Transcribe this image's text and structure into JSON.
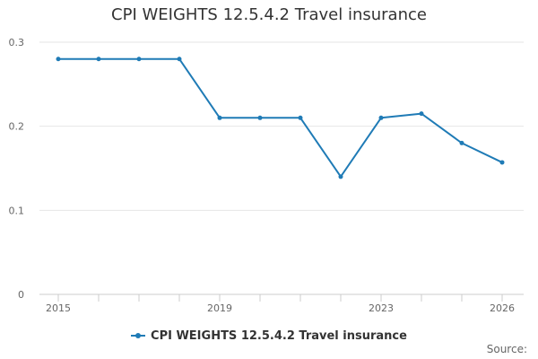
{
  "chart_data": {
    "type": "line",
    "title": "CPI WEIGHTS 12.5.4.2 Travel insurance",
    "x": [
      2015,
      2016,
      2017,
      2018,
      2019,
      2020,
      2021,
      2022,
      2023,
      2024,
      2025,
      2026
    ],
    "x_tick_labels": [
      "2015",
      "2019",
      "2023",
      "2026"
    ],
    "series": [
      {
        "name": "CPI WEIGHTS 12.5.4.2 Travel insurance",
        "values": [
          0.28,
          0.28,
          0.28,
          0.28,
          0.21,
          0.21,
          0.21,
          0.14,
          0.21,
          0.215,
          0.18,
          0.157
        ],
        "color": "#1f7bb6"
      }
    ],
    "y_ticks": [
      "0",
      "0.1",
      "0.2",
      "0.3"
    ],
    "ylim": [
      0,
      0.3
    ],
    "grid": true,
    "legend_position": "bottom-center",
    "xlabel": "",
    "ylabel": ""
  },
  "source_label": "Source:"
}
